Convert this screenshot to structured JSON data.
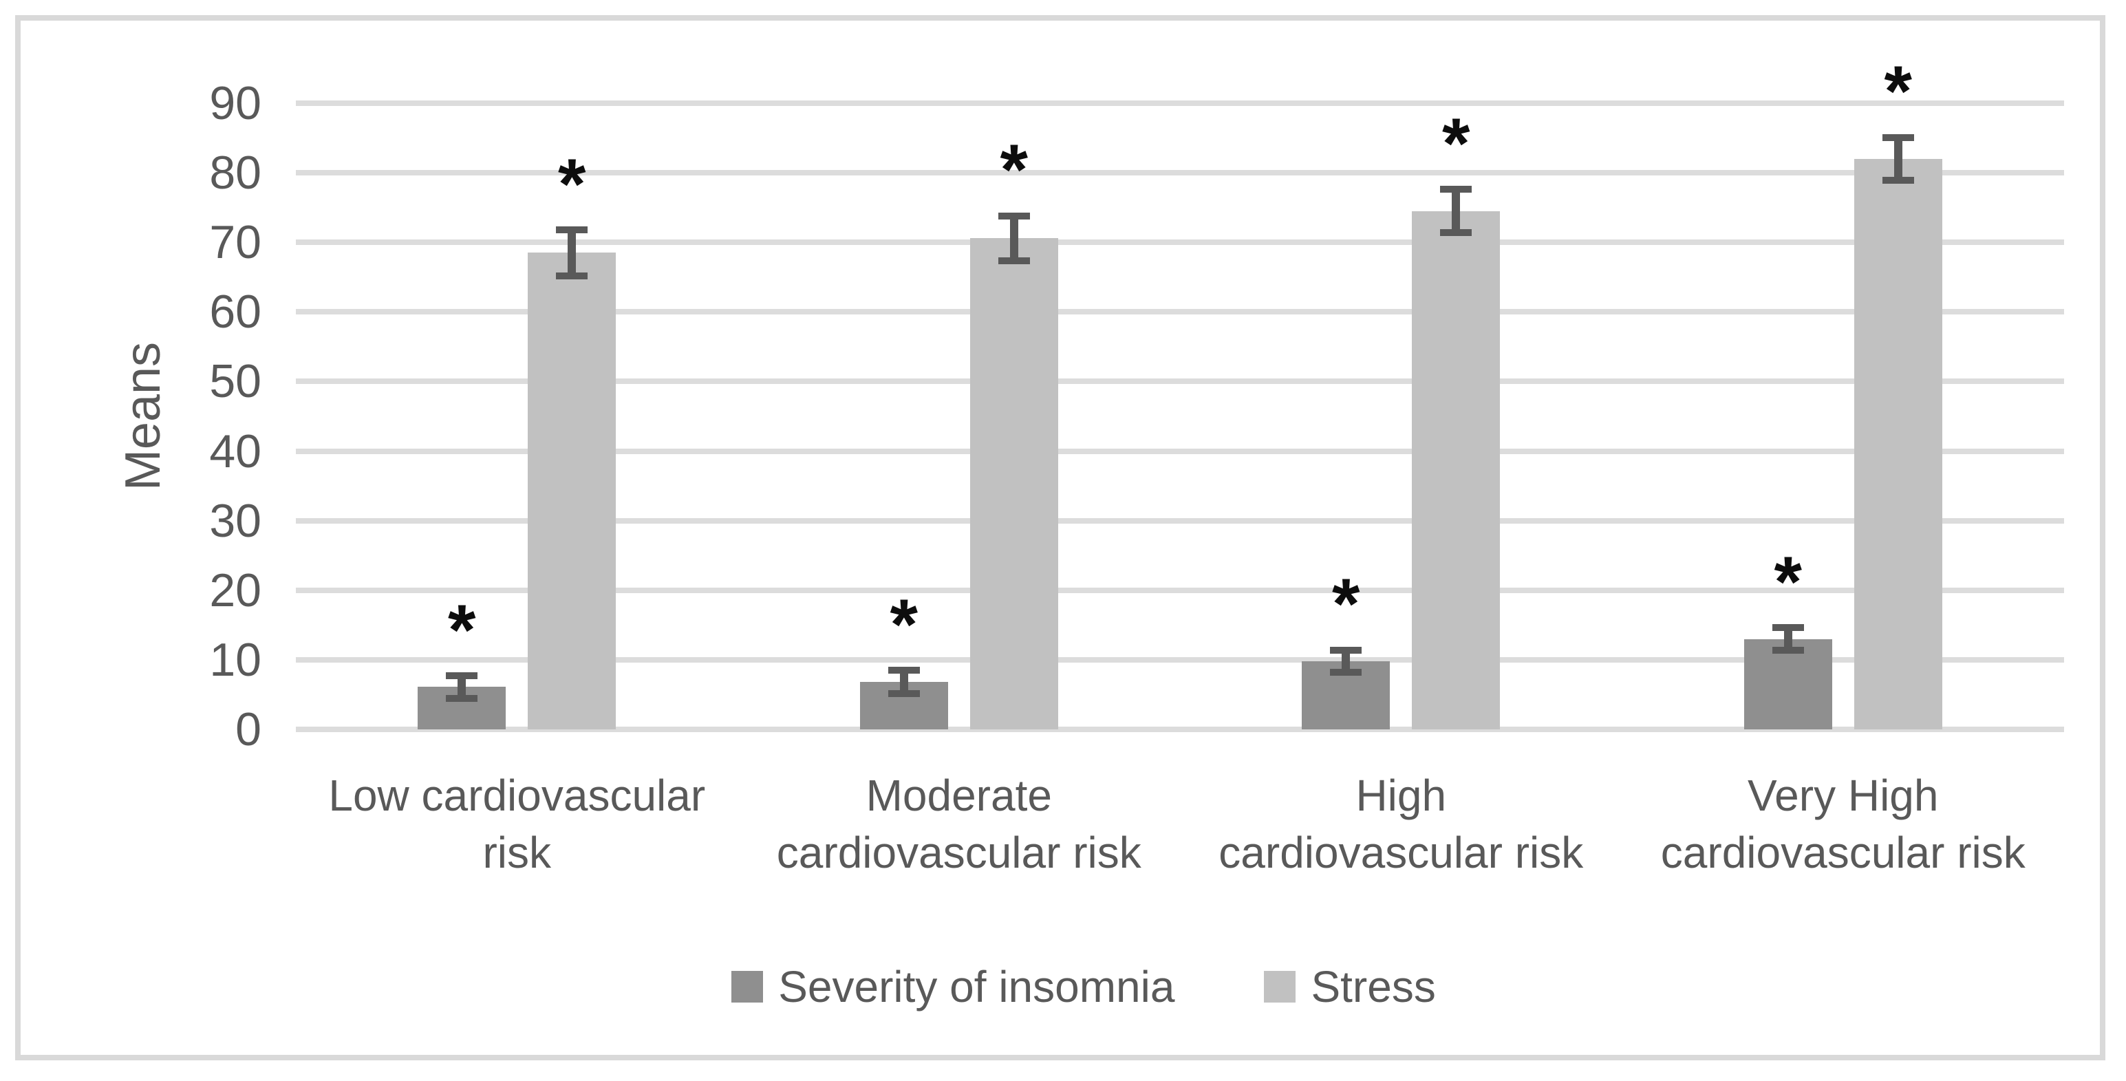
{
  "figure": {
    "background": "#ffffff",
    "border_color": "#d9d9d9"
  },
  "chart_data": {
    "type": "bar",
    "title": "",
    "ylabel": "Means",
    "xlabel": "",
    "ylim": [
      0,
      90
    ],
    "yticks": [
      0,
      10,
      20,
      30,
      40,
      50,
      60,
      70,
      80,
      90
    ],
    "grid": "horizontal gridlines on",
    "legend_position": "bottom center",
    "categories": [
      "Low cardiovascular risk",
      "Moderate cardiovascular risk",
      "High cardiovascular risk",
      "Very High cardiovascular risk"
    ],
    "category_lines": [
      [
        "Low cardiovascular",
        "risk"
      ],
      [
        "Moderate",
        "cardiovascular risk"
      ],
      [
        "High",
        "cardiovascular risk"
      ],
      [
        "Very High",
        "cardiovascular risk"
      ]
    ],
    "series": [
      {
        "name": "Severity of insomnia",
        "color": "#8f8f8f",
        "values": [
          6.1,
          6.8,
          9.8,
          13
        ],
        "errors": [
          1.6,
          1.7,
          1.6,
          1.6
        ],
        "significance": [
          "*",
          "*",
          "*",
          "*"
        ]
      },
      {
        "name": "Stress",
        "color": "#c1c1c1",
        "values": [
          68.5,
          70.6,
          74.5,
          82
        ],
        "errors": [
          3.3,
          3.2,
          3.1,
          3.1
        ],
        "significance": [
          "*",
          "*",
          "*",
          "*"
        ]
      }
    ],
    "annotation_symbol": "*",
    "error_bar_color": "#595959",
    "gridline_color": "#dcdcdc",
    "text_color": "#595959"
  }
}
